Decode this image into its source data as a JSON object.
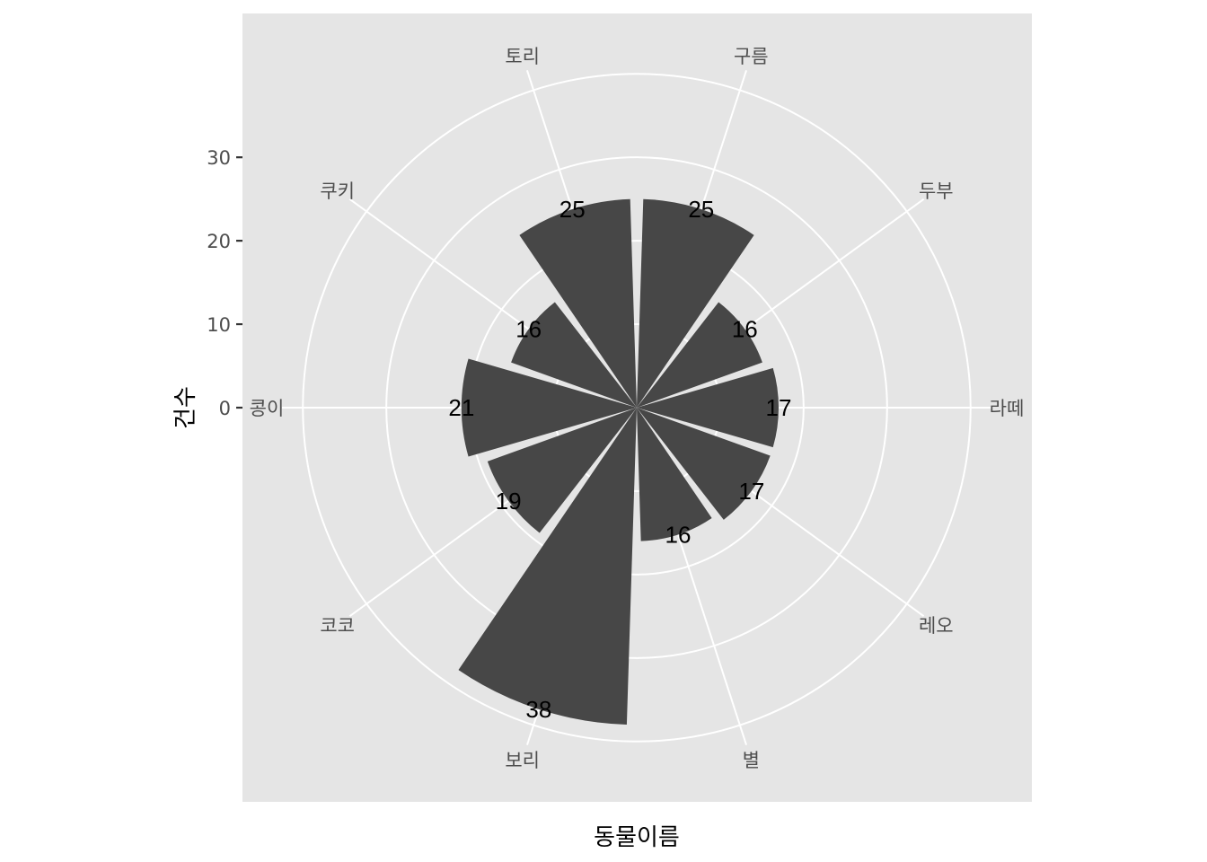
{
  "chart_data": {
    "type": "bar",
    "coord": "polar",
    "categories": [
      "구름",
      "두부",
      "라떼",
      "레오",
      "별",
      "보리",
      "코코",
      "콩이",
      "쿠키",
      "토리"
    ],
    "values": [
      25,
      16,
      17,
      17,
      16,
      38,
      19,
      21,
      16,
      25
    ],
    "data_labels": [
      "25",
      "16",
      "17",
      "17",
      "16",
      "38",
      "19",
      "21",
      "16",
      "25"
    ],
    "xlabel": "동물이름",
    "ylabel": "건수",
    "yticks": [
      0,
      10,
      20,
      30
    ],
    "ytick_labels": [
      "0",
      "10",
      "20",
      "30"
    ],
    "grid_rings": [
      0,
      10,
      20,
      30,
      40
    ],
    "ylim": [
      0,
      42.5
    ],
    "grid": true,
    "legend": "none",
    "colors": {
      "panel": "#e5e5e5",
      "grid": "#ffffff",
      "bar": "#474747",
      "text": "#4d4d4d",
      "label": "#000000"
    }
  }
}
